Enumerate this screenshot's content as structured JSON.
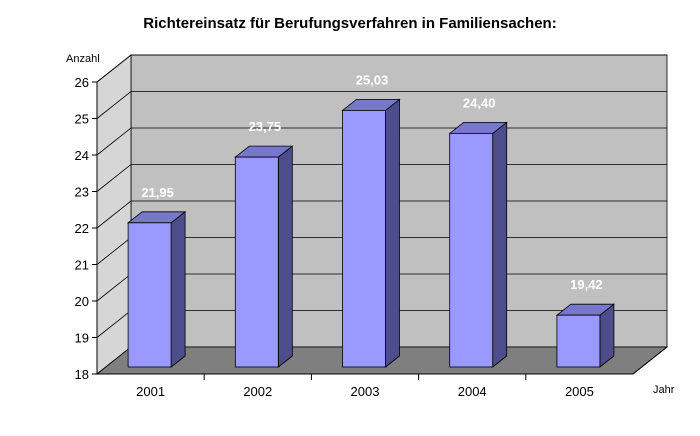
{
  "chart_data": {
    "type": "bar",
    "title": "Richtereinsatz für Berufungsverfahren in Familiensachen:",
    "ylabel": "Anzahl",
    "xlabel": "Jahr",
    "categories": [
      "2001",
      "2002",
      "2003",
      "2004",
      "2005"
    ],
    "values": [
      21.95,
      23.75,
      25.03,
      24.4,
      19.42
    ],
    "value_labels": [
      "21,95",
      "23,75",
      "25,03",
      "24,40",
      "19,42"
    ],
    "ylim": [
      18,
      26
    ],
    "yticks": [
      "18",
      "19",
      "20",
      "21",
      "22",
      "23",
      "24",
      "25",
      "26"
    ],
    "grid": true,
    "legend": "none",
    "colors": {
      "bar_front": "#9999ff",
      "bar_side": "#4d4d8c",
      "bar_top": "#7777cc",
      "back_wall": "#c0c0c0",
      "side_wall": "#d6d6d6",
      "floor": "#7f7f7f",
      "data_label": "#ffffff"
    }
  }
}
